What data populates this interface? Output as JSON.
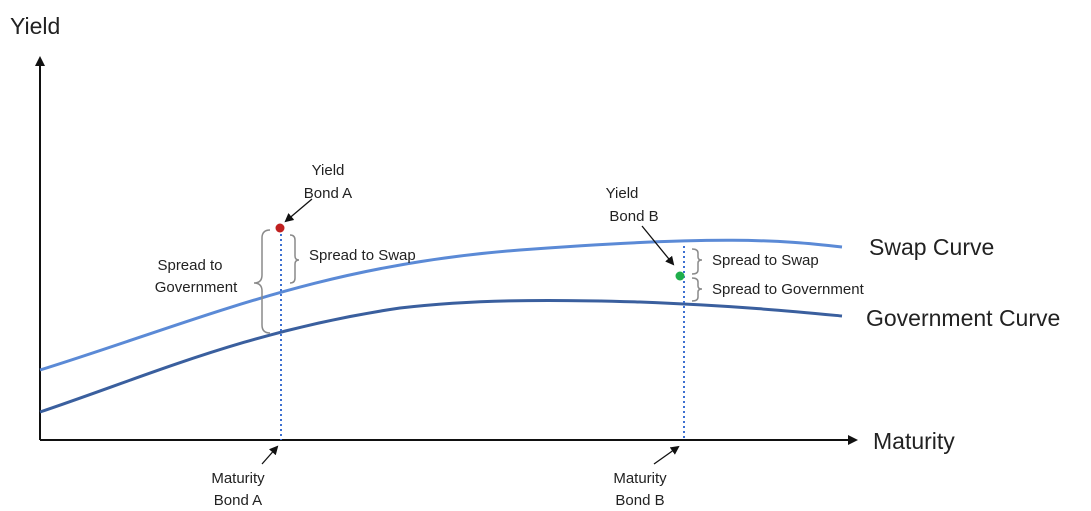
{
  "axes": {
    "y_label": "Yield",
    "x_label": "Maturity"
  },
  "curves": {
    "swap": {
      "label": "Swap Curve",
      "color": "#5b8ad6"
    },
    "government": {
      "label": "Government Curve",
      "color": "#3a5f9e"
    }
  },
  "bond_a": {
    "yield_label_line1": "Yield",
    "yield_label_line2": "Bond A",
    "maturity_label_line1": "Maturity",
    "maturity_label_line2": "Bond A",
    "spread_to_swap": "Spread to Swap",
    "spread_to_government_line1": "Spread to",
    "spread_to_government_line2": "Government",
    "point_color": "#c0201f"
  },
  "bond_b": {
    "yield_label_line1": "Yield",
    "yield_label_line2": "Bond B",
    "maturity_label_line1": "Maturity",
    "maturity_label_line2": "Bond B",
    "spread_to_swap": "Spread to Swap",
    "spread_to_government": "Spread to Government",
    "point_color": "#1fae4b"
  },
  "colors": {
    "axis": "#111111",
    "dotted_guide": "#3c6fd1",
    "bracket": "#8a8a8a"
  }
}
